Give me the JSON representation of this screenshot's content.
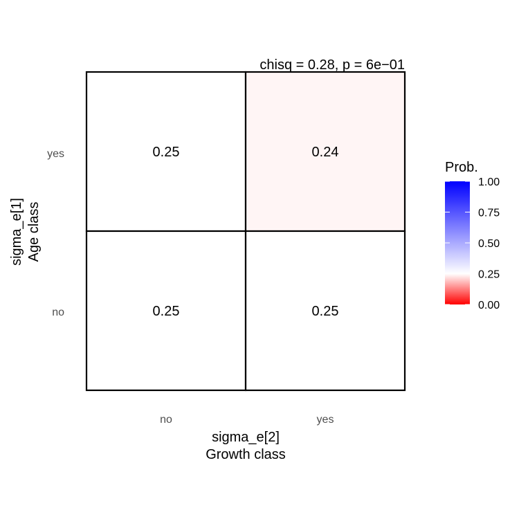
{
  "chart_data": {
    "type": "heatmap",
    "subtitle": "chisq = 0.28, p = 6e−01",
    "x_categories": [
      "no",
      "yes"
    ],
    "y_categories": [
      "no",
      "yes"
    ],
    "xlabel": [
      "sigma_e[2]",
      "Growth class"
    ],
    "ylabel": [
      "sigma_e[1]",
      "Age class"
    ],
    "cells": [
      {
        "x": "no",
        "y": "yes",
        "value": 0.25,
        "label": "0.25"
      },
      {
        "x": "yes",
        "y": "yes",
        "value": 0.24,
        "label": "0.24"
      },
      {
        "x": "no",
        "y": "no",
        "value": 0.25,
        "label": "0.25"
      },
      {
        "x": "yes",
        "y": "no",
        "value": 0.25,
        "label": "0.25"
      }
    ],
    "legend": {
      "title": "Prob.",
      "ticks": [
        "0.00",
        "0.25",
        "0.50",
        "0.75",
        "1.00"
      ],
      "tick_values": [
        0,
        0.25,
        0.5,
        0.75,
        1.0
      ],
      "range": [
        0,
        1
      ],
      "midpoint": 0.25,
      "low_color": "#ff0000",
      "mid_color": "#ffffff",
      "high_color": "#0000ff",
      "placement": "right"
    },
    "grid": false
  }
}
